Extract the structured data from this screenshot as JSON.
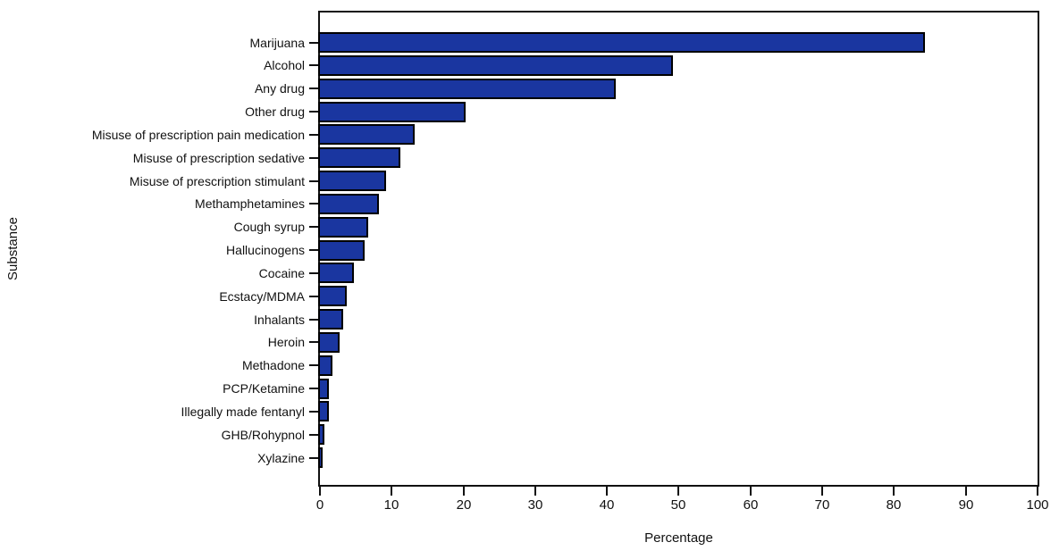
{
  "chart_data": {
    "type": "bar",
    "orientation": "horizontal",
    "categories": [
      "Marijuana",
      "Alcohol",
      "Any drug",
      "Other drug",
      "Misuse of prescription pain medication",
      "Misuse of prescription sedative",
      "Misuse of prescription stimulant",
      "Methamphetamines",
      "Cough syrup",
      "Hallucinogens",
      "Cocaine",
      "Ecstacy/MDMA",
      "Inhalants",
      "Heroin",
      "Methadone",
      "PCP/Ketamine",
      "Illegally made fentanyl",
      "GHB/Rohypnol",
      "Xylazine"
    ],
    "values": [
      84,
      49,
      41,
      20,
      13,
      11,
      9,
      8,
      6.5,
      6,
      4.5,
      3.5,
      3,
      2.5,
      1.5,
      1,
      1,
      0.4,
      0.1
    ],
    "xlabel": "Percentage",
    "ylabel": "Substance",
    "xlim": [
      0,
      100
    ],
    "xticks": [
      0,
      10,
      20,
      30,
      40,
      50,
      60,
      70,
      80,
      90,
      100
    ],
    "grid": false,
    "legend": "none",
    "bar_color": "#1a36a0",
    "bar_border_color": "#000000",
    "axis_color": "#111111"
  }
}
